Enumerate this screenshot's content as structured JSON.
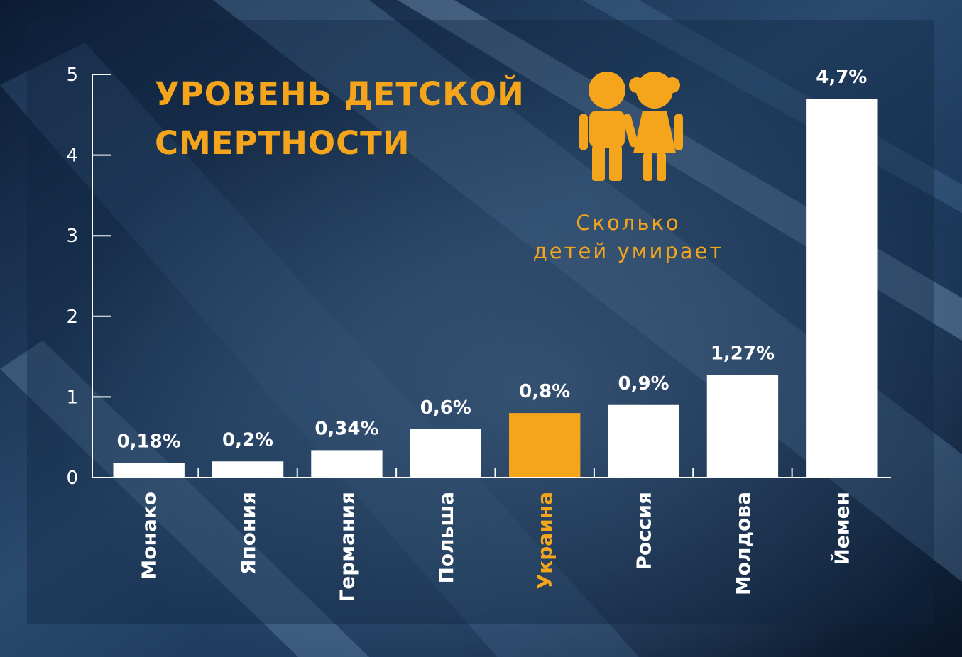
{
  "chart_data": {
    "type": "bar",
    "title_lines": [
      "УРОВЕНЬ ДЕТСКОЙ",
      "СМЕРТНОСТИ"
    ],
    "subtitle_lines": [
      "Сколько",
      "детей умирает"
    ],
    "categories": [
      "Монако",
      "Япония",
      "Германия",
      "Польша",
      "Украина",
      "Россия",
      "Молдова",
      "Йемен"
    ],
    "values": [
      0.18,
      0.2,
      0.34,
      0.6,
      0.8,
      0.9,
      1.27,
      4.7
    ],
    "value_labels": [
      "0,18%",
      "0,2%",
      "0,34%",
      "0,6%",
      "0,8%",
      "0,9%",
      "1,27%",
      "4,7%"
    ],
    "ylim": [
      0,
      5
    ],
    "yticks": [
      0,
      1,
      2,
      3,
      4,
      5
    ],
    "highlight_category": "Украина",
    "grid": false,
    "xlabel": "",
    "ylabel": ""
  },
  "colors": {
    "bar": "#ffffff",
    "highlight": "#f5a51c",
    "accent": "#f5a51c",
    "background": "#16304f"
  },
  "icon": "children-icon"
}
